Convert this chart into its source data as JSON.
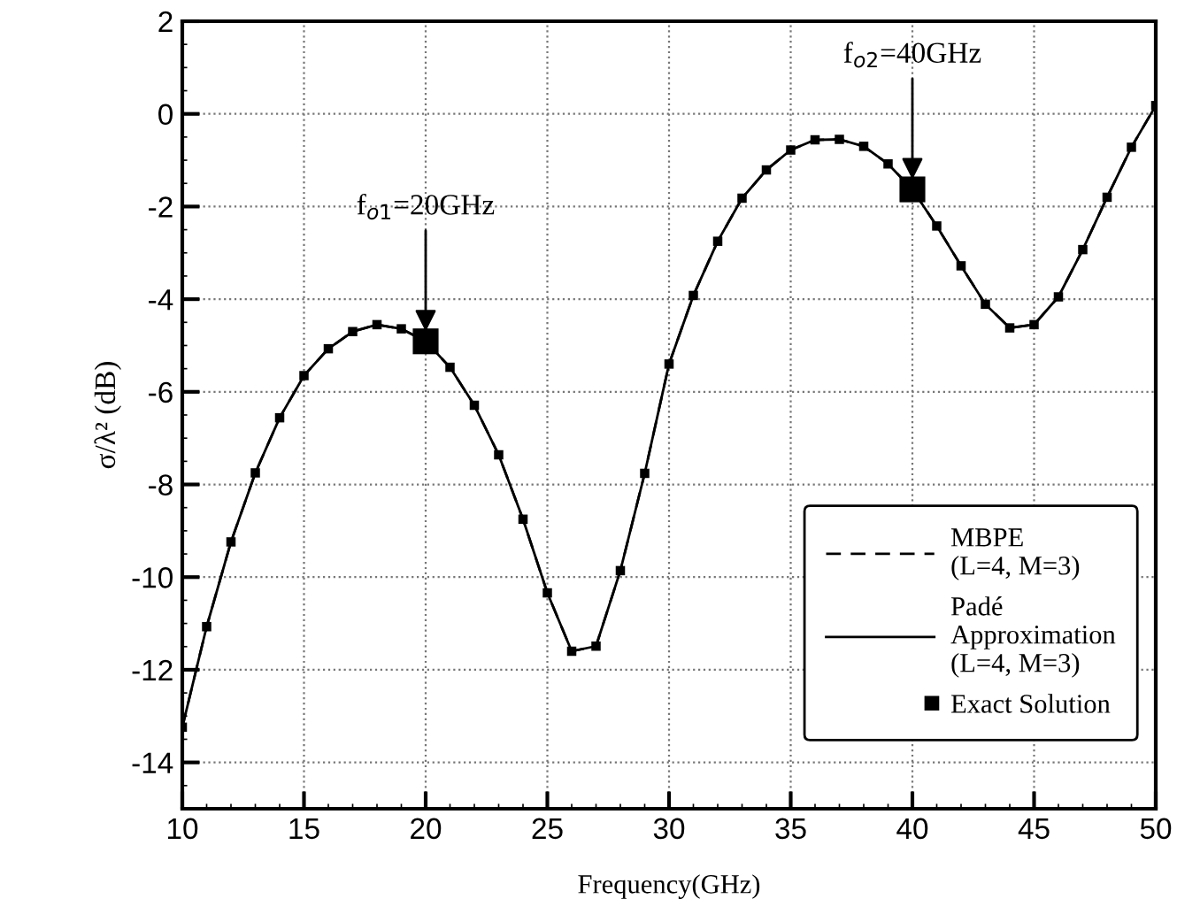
{
  "chart_data": {
    "type": "line",
    "xlabel": "Frequency(GHz)",
    "ylabel": "σ/λ² (dB)",
    "x": [
      10,
      11,
      12,
      13,
      14,
      15,
      16,
      17,
      18,
      19,
      20,
      21,
      22,
      23,
      24,
      25,
      26,
      27,
      28,
      29,
      30,
      31,
      32,
      33,
      34,
      35,
      36,
      37,
      38,
      39,
      40,
      41,
      42,
      43,
      44,
      45,
      46,
      47,
      48,
      49,
      50
    ],
    "series": [
      {
        "name": "MBPE\n(L=4, M=3)",
        "line_style": "dashed",
        "color": "#000000",
        "values": [
          -13.24,
          -11.07,
          -9.24,
          -7.75,
          -6.56,
          -5.65,
          -5.07,
          -4.7,
          -4.55,
          -4.64,
          -4.91,
          -5.47,
          -6.29,
          -7.36,
          -8.75,
          -10.34,
          -11.6,
          -11.49,
          -9.86,
          -7.76,
          -5.4,
          -3.92,
          -2.75,
          -1.82,
          -1.21,
          -0.78,
          -0.56,
          -0.55,
          -0.7,
          -1.08,
          -1.63,
          -2.42,
          -3.28,
          -4.11,
          -4.62,
          -4.55,
          -3.95,
          -2.93,
          -1.8,
          -0.72,
          0.18
        ]
      },
      {
        "name": "Padé\nApproximation\n(L=4, M=3)",
        "line_style": "solid",
        "color": "#000000",
        "values": [
          -13.24,
          -11.07,
          -9.24,
          -7.75,
          -6.56,
          -5.65,
          -5.07,
          -4.7,
          -4.55,
          -4.64,
          -4.91,
          -5.47,
          -6.29,
          -7.36,
          -8.75,
          -10.34,
          -11.6,
          -11.49,
          -9.86,
          -7.76,
          -5.4,
          -3.92,
          -2.75,
          -1.82,
          -1.21,
          -0.78,
          -0.56,
          -0.55,
          -0.7,
          -1.08,
          -1.63,
          -2.42,
          -3.28,
          -4.11,
          -4.62,
          -4.55,
          -3.95,
          -2.93,
          -1.8,
          -0.72,
          0.18
        ]
      },
      {
        "name": "Exact Solution",
        "type": "scatter",
        "marker": "square",
        "color": "#000000",
        "values": [
          -13.24,
          -11.07,
          -9.24,
          -7.75,
          -6.56,
          -5.65,
          -5.07,
          -4.7,
          -4.55,
          -4.64,
          -4.91,
          -5.47,
          -6.29,
          -7.36,
          -8.75,
          -10.34,
          -11.6,
          -11.49,
          -9.86,
          -7.76,
          -5.4,
          -3.92,
          -2.75,
          -1.82,
          -1.21,
          -0.78,
          -0.56,
          -0.55,
          -0.7,
          -1.08,
          -1.63,
          -2.42,
          -3.28,
          -4.11,
          -4.62,
          -4.55,
          -3.95,
          -2.93,
          -1.8,
          -0.72,
          0.18
        ],
        "sizes": [
          0.13,
          0.13,
          0.13,
          0.13,
          0.13,
          0.13,
          0.13,
          0.13,
          0.13,
          0.13,
          1,
          0.13,
          0.13,
          0.13,
          0.13,
          0.13,
          0.13,
          0.13,
          0.13,
          0.13,
          0.13,
          0.13,
          0.13,
          0.13,
          0.13,
          0.13,
          0.13,
          0.13,
          0.13,
          0.13,
          1,
          0.13,
          0.13,
          0.13,
          0.13,
          0.13,
          0.13,
          0.13,
          0.13,
          0.13,
          0.13
        ]
      }
    ],
    "annotations": [
      {
        "text": "f$_{o1}$=20GHz",
        "x": 20,
        "y": -4.91
      },
      {
        "text": "f$_{o2}$=40GHz",
        "x": 40,
        "y": -1.63
      }
    ],
    "xlim": [
      10,
      50
    ],
    "xticks": [
      10,
      15,
      20,
      25,
      30,
      35,
      40,
      45,
      50
    ],
    "ylim": [
      -15,
      2
    ],
    "yticks": [
      -14,
      -12,
      -10,
      -8,
      -6,
      -4,
      -2,
      0,
      2
    ],
    "grid": true,
    "legend": "bottom right"
  }
}
